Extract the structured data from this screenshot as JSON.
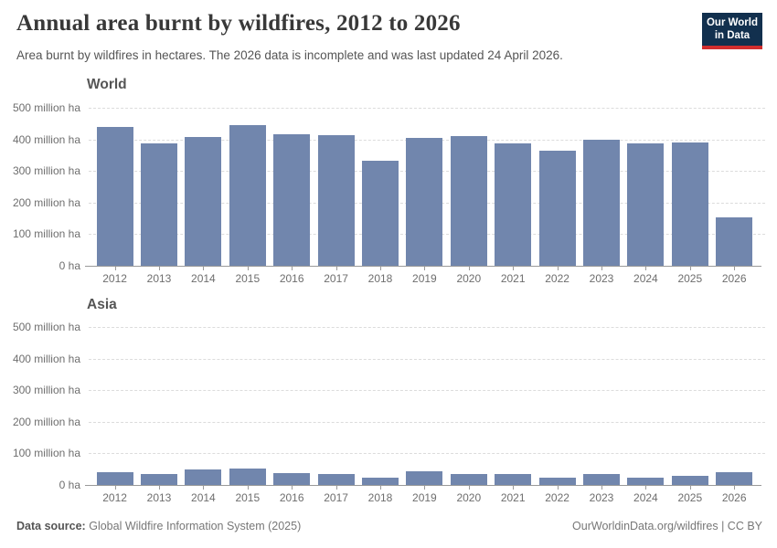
{
  "header": {
    "title": "Annual area burnt by wildfires, 2012 to 2026",
    "subtitle": "Area burnt by wildfires in hectares. The 2026 data is incomplete and was last updated 24 April 2026."
  },
  "logo": {
    "line1": "Our World",
    "line2": "in Data"
  },
  "footer": {
    "datasource_label": "Data source:",
    "datasource_value": "Global Wildfire Information System (2025)",
    "attribution": "OurWorldinData.org/wildfires | CC BY"
  },
  "colors": {
    "bar": "#7186ad",
    "logo_navy": "#12304e",
    "logo_red": "#d22e2e",
    "gridline": "#dcdcdc",
    "axis": "#9a9a9a",
    "tick_text": "#6e6e6e",
    "title_text": "#383838"
  },
  "chart_data": [
    {
      "type": "bar",
      "title": "World",
      "categories": [
        "2012",
        "2013",
        "2014",
        "2015",
        "2016",
        "2017",
        "2018",
        "2019",
        "2020",
        "2021",
        "2022",
        "2023",
        "2024",
        "2025",
        "2026"
      ],
      "values": [
        438,
        388,
        408,
        444,
        416,
        412,
        332,
        406,
        410,
        386,
        364,
        400,
        388,
        390,
        152
      ],
      "unit": "million ha",
      "ylim": [
        0,
        500
      ],
      "yticks": [
        "0 ha",
        "100 million ha",
        "200 million ha",
        "300 million ha",
        "400 million ha",
        "500 million ha"
      ],
      "grid": true,
      "legend": "none"
    },
    {
      "type": "bar",
      "title": "Asia",
      "categories": [
        "2012",
        "2013",
        "2014",
        "2015",
        "2016",
        "2017",
        "2018",
        "2019",
        "2020",
        "2021",
        "2022",
        "2023",
        "2024",
        "2025",
        "2026"
      ],
      "values": [
        40,
        35,
        48,
        53,
        39,
        34,
        23,
        42,
        35,
        35,
        23,
        34,
        24,
        29,
        41
      ],
      "unit": "million ha",
      "ylim": [
        0,
        500
      ],
      "yticks": [
        "0 ha",
        "100 million ha",
        "200 million ha",
        "300 million ha",
        "400 million ha",
        "500 million ha"
      ],
      "grid": true,
      "legend": "none"
    }
  ]
}
